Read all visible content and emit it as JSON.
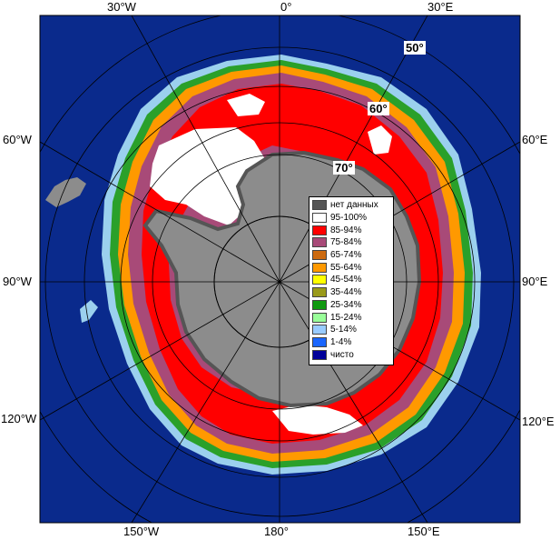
{
  "map": {
    "longitude_labels": {
      "top": [
        "30°W",
        "0°",
        "30°E"
      ],
      "bottom": [
        "150°W",
        "180°",
        "150°E"
      ],
      "left": [
        "60°W",
        "90°W",
        "120°W"
      ],
      "right": [
        "60°E",
        "90°E",
        "120°E"
      ]
    },
    "latitude_labels": [
      "50°",
      "60°",
      "70°"
    ],
    "colors": {
      "ocean_open": "#0a2a8c",
      "land_no_data": "#8c8c8c",
      "graticule": "#000000"
    }
  },
  "legend": {
    "items": [
      {
        "label": "нет данных",
        "color": "#555555"
      },
      {
        "label": "95-100%",
        "color": "#ffffff"
      },
      {
        "label": "85-94%",
        "color": "#ff0000"
      },
      {
        "label": "75-84%",
        "color": "#a84a78"
      },
      {
        "label": "65-74%",
        "color": "#cc6a10"
      },
      {
        "label": "55-64%",
        "color": "#ff9900"
      },
      {
        "label": "45-54%",
        "color": "#ffff00"
      },
      {
        "label": "35-44%",
        "color": "#9a9a1a"
      },
      {
        "label": "25-34%",
        "color": "#119911"
      },
      {
        "label": "15-24%",
        "color": "#99ff99"
      },
      {
        "label": "5-14%",
        "color": "#99ccff"
      },
      {
        "label": "1-4%",
        "color": "#1a66ff"
      },
      {
        "label": "чисто",
        "color": "#000099"
      }
    ]
  }
}
